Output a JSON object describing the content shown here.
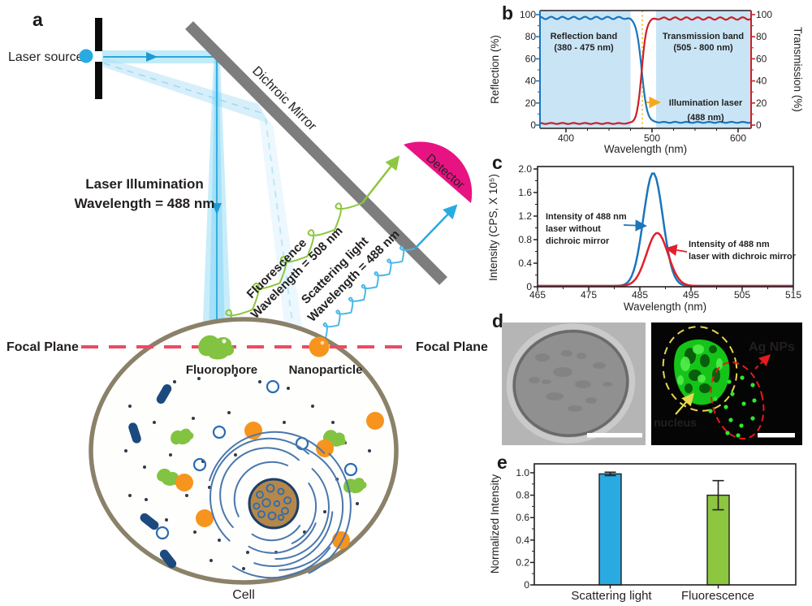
{
  "colors": {
    "laser_blue": "#29abe2",
    "beam_core": "#2aa8dc",
    "green": "#8dc63f",
    "orange": "#f7941d",
    "magenta": "#e81383",
    "mirror_gray": "#7d7d7d",
    "focal_red": "#ee4a62",
    "navy": "#1c4a7e",
    "chart_blue": "#1b75bb",
    "chart_red": "#cb2027",
    "band_fill": "#c9e5f5",
    "dotted_orange": "#f5b21c",
    "nucleus_brown": "#b5874a",
    "cell_outline": "#8b8169",
    "fluor_green": "#2ee82e",
    "label_yellow": "#e8d84a",
    "nps_red": "#e8191f"
  },
  "panels": {
    "a": {
      "label": "a",
      "laser_source": "Laser source",
      "dichroic_mirror": "Dichroic Mirror",
      "illumination": [
        "Laser Illumination",
        "Wavelength = 488 nm"
      ],
      "detector": "Detector",
      "fluorescence": [
        "Fluorescence",
        "Wavelength = 508 nm"
      ],
      "scattering": [
        "Scattering light",
        "Wavelength = 488 nm"
      ],
      "focal_plane_left": "Focal Plane",
      "focal_plane_right": "Focal Plane",
      "fluorophore": "Fluorophore",
      "nanoparticle": "Nanoparticle",
      "cell": "Cell"
    },
    "d": {
      "label": "d",
      "nucleus_label": "nucleus",
      "ag_nps_label": "Ag NPs"
    }
  },
  "chart_data": [
    {
      "id": "b",
      "type": "line",
      "panel_label": "b",
      "xlabel": "Wavelength (nm)",
      "ylabel_left": "Reflection (%)",
      "ylabel_right": "Transmission (%)",
      "xlim": [
        370,
        615
      ],
      "ylim": [
        0,
        100
      ],
      "xtick_labels": [
        "400",
        "500",
        "600"
      ],
      "ytick_labels": [
        "0",
        "20",
        "40",
        "60",
        "80",
        "100"
      ],
      "bands_nm": [
        [
          370,
          475
        ],
        [
          505,
          615
        ]
      ],
      "series": [
        {
          "name": "Reflection",
          "color": "#1b75bb",
          "sigmoid": {
            "low": 2.5,
            "high": 97,
            "center": 488,
            "width": 3.1,
            "direction": "falling"
          },
          "points": [
            [
              380,
              97
            ],
            [
              450,
              97
            ],
            [
              475,
              93
            ],
            [
              488,
              50
            ],
            [
              500,
              6
            ],
            [
              505,
              3
            ],
            [
              600,
              2.5
            ]
          ]
        },
        {
          "name": "Transmission",
          "color": "#cb2027",
          "sigmoid": {
            "low": 1.5,
            "high": 96.5,
            "center": 488,
            "width": 2.7,
            "direction": "rising"
          },
          "points": [
            [
              380,
              1
            ],
            [
              450,
              1
            ],
            [
              475,
              7
            ],
            [
              488,
              50
            ],
            [
              500,
              94
            ],
            [
              505,
              96
            ],
            [
              600,
              97
            ]
          ]
        }
      ],
      "annotations": {
        "reflection_band": [
          "Reflection band",
          "(380 - 475 nm)"
        ],
        "transmission_band": [
          "Transmission band",
          "(505 - 800 nm)"
        ],
        "illumination_laser": [
          "Illumination laser",
          "(488 nm)"
        ],
        "laser_line_nm": 488
      }
    },
    {
      "id": "c",
      "type": "line",
      "panel_label": "c",
      "xlabel": "Wavelength (nm)",
      "ylabel": "Intensity (CPS, X 10⁵)",
      "xlim": [
        465,
        515
      ],
      "ylim": [
        0,
        2.0
      ],
      "xtick_labels": [
        "465",
        "475",
        "485",
        "495",
        "505",
        "515"
      ],
      "ytick_labels": [
        "0",
        "0.4",
        "0.8",
        "1.2",
        "1.6",
        "2.0"
      ],
      "series": [
        {
          "name": "Intensity of 488 nm laser without dichroic mirror",
          "color": "#1b75bb",
          "peak": {
            "center": 487.6,
            "height": 1.92,
            "sigma": 1.9
          }
        },
        {
          "name": "Intensity of 488 nm laser with dichroic mirror",
          "color": "#e0202a",
          "peak": {
            "center": 488.4,
            "height": 0.9,
            "sigma": 2.1
          }
        }
      ],
      "annotations": {
        "without": [
          "Intensity of 488 nm",
          "laser without",
          "dichroic mirror"
        ],
        "with": [
          "Intensity of 488 nm",
          "laser with dichroic mirror"
        ]
      }
    },
    {
      "id": "e",
      "type": "bar",
      "panel_label": "e",
      "ylabel": "Normalized Intensity",
      "categories": [
        "Scattering light",
        "Fluorescence"
      ],
      "values": [
        0.99,
        0.8
      ],
      "errors": [
        0.015,
        0.13
      ],
      "bar_colors": [
        "#29abe2",
        "#8dc63f"
      ],
      "ylim": [
        0,
        1.08
      ],
      "ytick_labels": [
        "0",
        "0.2",
        "0.4",
        "0.6",
        "0.8",
        "1.0"
      ]
    }
  ]
}
